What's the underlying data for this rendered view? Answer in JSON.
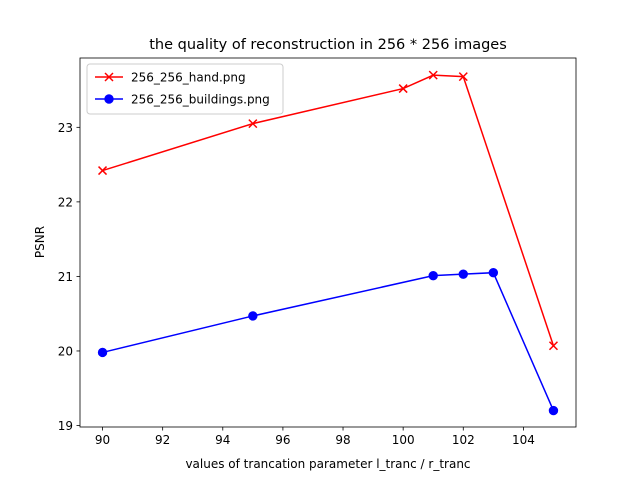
{
  "chart_data": {
    "type": "line",
    "title": "the quality of reconstruction in 256 * 256 images",
    "xlabel": "values of trancation parameter l_tranc / r_tranc",
    "ylabel": "PSNR",
    "xlim": [
      89.25,
      105.75
    ],
    "ylim": [
      18.98,
      23.93
    ],
    "xticks": [
      90,
      92,
      94,
      96,
      98,
      100,
      102,
      104
    ],
    "yticks": [
      19,
      20,
      21,
      22,
      23
    ],
    "grid": false,
    "legend_position": "top-left",
    "series": [
      {
        "name": "256_256_hand.png",
        "color": "#ff0000",
        "marker": "x",
        "x": [
          90,
          95,
          100,
          101,
          102,
          105
        ],
        "y": [
          22.42,
          23.05,
          23.52,
          23.7,
          23.68,
          20.07
        ]
      },
      {
        "name": "256_256_buildings.png",
        "color": "#0000ff",
        "marker": "o",
        "x": [
          90,
          95,
          101,
          102,
          103,
          105
        ],
        "y": [
          19.98,
          20.47,
          21.01,
          21.03,
          21.05,
          19.2
        ]
      }
    ]
  }
}
